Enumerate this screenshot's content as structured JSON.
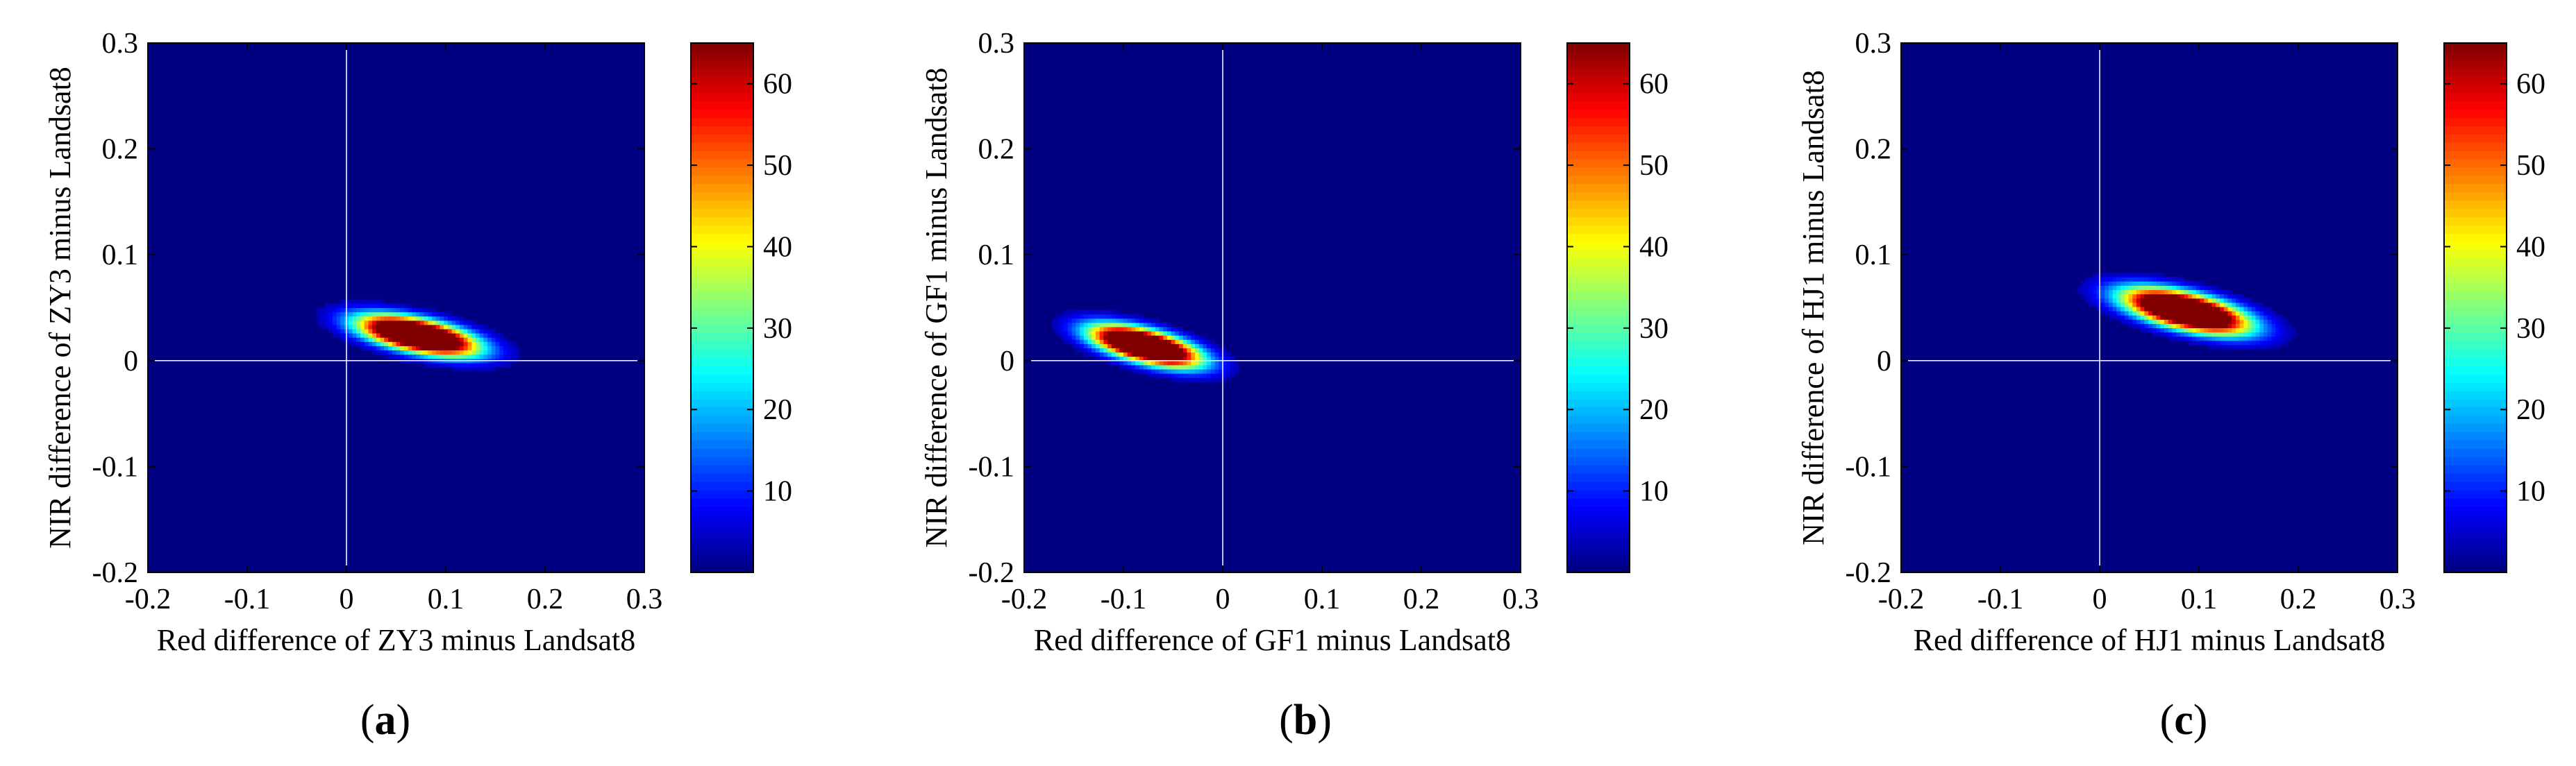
{
  "chart_data": [
    {
      "panel_label": "a",
      "type": "heatmap",
      "xlabel": "Red difference of ZY3 minus Landsat8",
      "ylabel": "NIR difference of ZY3 minus Landsat8",
      "xlim": [
        -0.2,
        0.3
      ],
      "ylim": [
        -0.2,
        0.3
      ],
      "xticks": [
        "-0.2",
        "-0.1",
        "0",
        "0.1",
        "0.2",
        "0.3"
      ],
      "yticks": [
        "-0.2",
        "-0.1",
        "0",
        "0.1",
        "0.2",
        "0.3"
      ],
      "colorbar": {
        "min": 0,
        "max": 65,
        "ticks": [
          "10",
          "20",
          "30",
          "40",
          "50",
          "60"
        ]
      },
      "background_value": 0,
      "cluster": {
        "center_x": 0.07,
        "center_y": 0.022,
        "spread_x": 0.038,
        "spread_y": 0.01,
        "slope": -0.18,
        "peak": 65
      }
    },
    {
      "panel_label": "b",
      "type": "heatmap",
      "xlabel": "Red difference of GF1 minus Landsat8",
      "ylabel": "NIR difference of GF1 minus Landsat8",
      "xlim": [
        -0.2,
        0.3
      ],
      "ylim": [
        -0.2,
        0.3
      ],
      "xticks": [
        "-0.2",
        "-0.1",
        "0",
        "0.1",
        "0.2",
        "0.3"
      ],
      "yticks": [
        "-0.2",
        "-0.1",
        "0",
        "0.1",
        "0.2",
        "0.3"
      ],
      "colorbar": {
        "min": 0,
        "max": 65,
        "ticks": [
          "10",
          "20",
          "30",
          "40",
          "50",
          "60"
        ]
      },
      "background_value": 0,
      "cluster": {
        "center_x": -0.08,
        "center_y": 0.012,
        "spread_x": 0.035,
        "spread_y": 0.01,
        "slope": -0.22,
        "peak": 65
      }
    },
    {
      "panel_label": "c",
      "type": "heatmap",
      "xlabel": "Red difference of HJ1 minus Landsat8",
      "ylabel": "NIR difference of HJ1 minus Landsat8",
      "xlim": [
        -0.2,
        0.3
      ],
      "ylim": [
        -0.2,
        0.3
      ],
      "xticks": [
        "-0.2",
        "-0.1",
        "0",
        "0.1",
        "0.2",
        "0.3"
      ],
      "yticks": [
        "-0.2",
        "-0.1",
        "0",
        "0.1",
        "0.2",
        "0.3"
      ],
      "colorbar": {
        "min": 0,
        "max": 65,
        "ticks": [
          "10",
          "20",
          "30",
          "40",
          "50",
          "60"
        ]
      },
      "background_value": 0,
      "cluster": {
        "center_x": 0.085,
        "center_y": 0.045,
        "spread_x": 0.04,
        "spread_y": 0.011,
        "slope": -0.2,
        "peak": 65
      }
    }
  ]
}
